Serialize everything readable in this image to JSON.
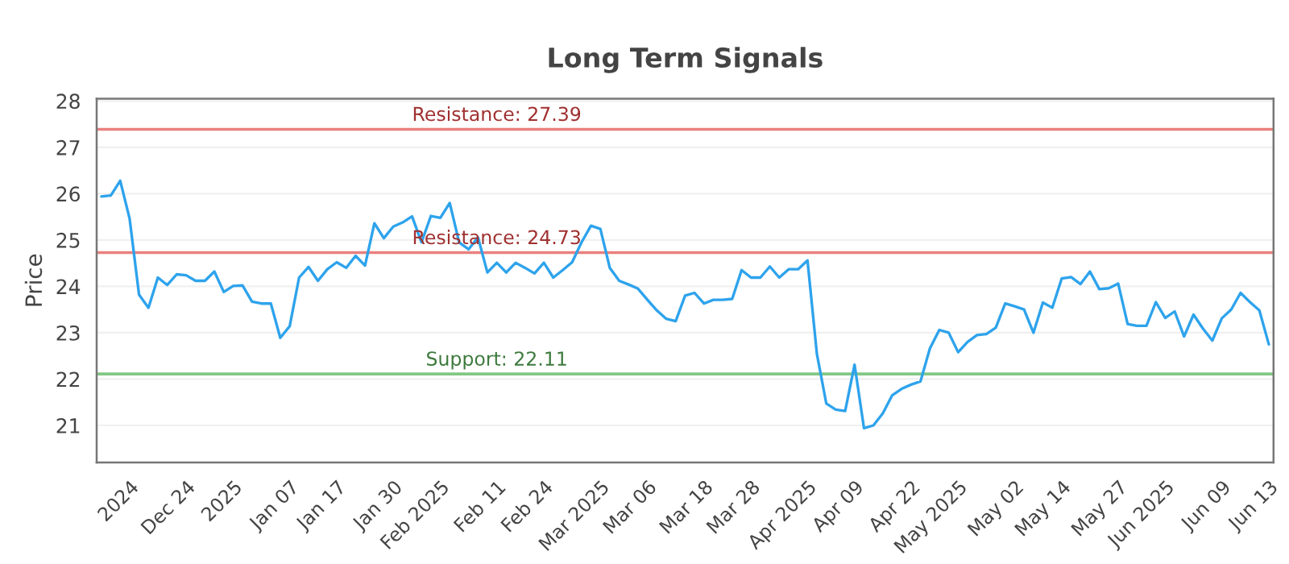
{
  "chart_data": {
    "type": "line",
    "title": "Long Term Signals",
    "ylabel": "Price",
    "categories": [
      null,
      null,
      null,
      "2024",
      null,
      null,
      null,
      null,
      null,
      "Dec 24",
      null,
      null,
      null,
      null,
      "2025",
      null,
      null,
      null,
      null,
      null,
      "Jan 07",
      null,
      null,
      null,
      null,
      "Jan 17",
      null,
      null,
      null,
      null,
      null,
      "Jan 30",
      null,
      null,
      null,
      null,
      "Feb 2025",
      null,
      null,
      null,
      null,
      null,
      "Feb 11",
      null,
      null,
      null,
      null,
      "Feb 24",
      null,
      null,
      null,
      null,
      null,
      "Mar 2025",
      null,
      null,
      null,
      null,
      "Mar 06",
      null,
      null,
      null,
      null,
      null,
      "Mar 18",
      null,
      null,
      null,
      null,
      "Mar 28",
      null,
      null,
      null,
      null,
      null,
      "Apr 2025",
      null,
      null,
      null,
      null,
      "Apr 09",
      null,
      null,
      null,
      null,
      null,
      "Apr 22",
      null,
      null,
      null,
      null,
      "May 2025",
      null,
      null,
      null,
      null,
      null,
      "May 02",
      null,
      null,
      null,
      null,
      "May 14",
      null,
      null,
      null,
      null,
      null,
      "May 27",
      null,
      null,
      null,
      null,
      "Jun 2025",
      null,
      null,
      null,
      null,
      null,
      "Jun 09",
      null,
      null,
      null,
      null,
      "Jun 13"
    ],
    "series": [
      {
        "color": "#2ea3ec",
        "values": [
          25.94,
          25.96,
          26.28,
          25.46,
          23.82,
          23.54,
          24.19,
          24.03,
          24.26,
          24.24,
          24.12,
          24.12,
          24.32,
          23.88,
          24.01,
          24.02,
          23.67,
          23.63,
          23.63,
          22.89,
          23.14,
          24.19,
          24.42,
          24.12,
          24.37,
          24.52,
          24.4,
          24.66,
          24.45,
          25.36,
          25.04,
          25.29,
          25.38,
          25.51,
          24.95,
          25.52,
          25.48,
          25.8,
          24.95,
          24.8,
          25.06,
          24.3,
          24.51,
          24.3,
          24.51,
          24.4,
          24.28,
          24.51,
          24.19,
          24.35,
          24.52,
          24.95,
          25.31,
          25.24,
          24.4,
          24.12,
          24.04,
          23.95,
          23.71,
          23.48,
          23.3,
          23.25,
          23.8,
          23.86,
          23.63,
          23.71,
          23.71,
          23.73,
          24.35,
          24.19,
          24.19,
          24.43,
          24.19,
          24.37,
          24.37,
          24.56,
          22.54,
          21.47,
          21.34,
          21.31,
          22.31,
          20.94,
          21.0,
          21.26,
          21.65,
          21.79,
          21.88,
          21.95,
          22.66,
          23.06,
          23.0,
          22.58,
          22.8,
          22.95,
          22.97,
          23.11,
          23.63,
          23.57,
          23.5,
          23.0,
          23.65,
          23.54,
          24.17,
          24.2,
          24.05,
          24.32,
          23.94,
          23.96,
          24.06,
          23.19,
          23.15,
          23.15,
          23.66,
          23.32,
          23.46,
          22.92,
          23.39,
          23.09,
          22.83,
          23.31,
          23.5,
          23.86,
          23.66,
          23.48,
          22.75
        ]
      }
    ],
    "ylim": [
      20.2,
      28.05
    ],
    "yticks": [
      21,
      22,
      23,
      24,
      25,
      26,
      27,
      28
    ],
    "grid": "y",
    "ref_lines": [
      {
        "axis": "y",
        "value": 27.39,
        "label": "Resistance: 27.39",
        "color": "#e8807e"
      },
      {
        "axis": "y",
        "value": 24.73,
        "label": "Resistance: 24.73",
        "color": "#e8807e"
      },
      {
        "axis": "y",
        "value": 22.11,
        "label": "Support: 22.11",
        "color": "#82c785"
      }
    ]
  }
}
